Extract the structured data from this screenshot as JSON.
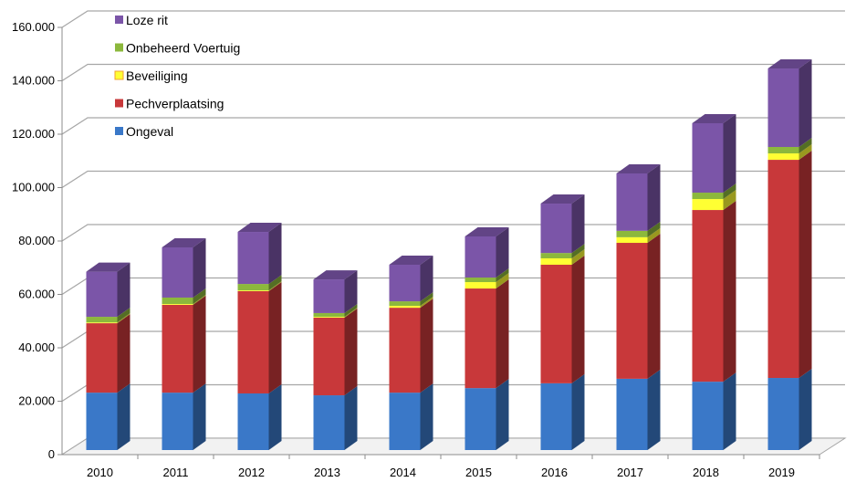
{
  "chart_data": {
    "type": "bar",
    "stacked": true,
    "three_d": true,
    "title": "",
    "xlabel": "",
    "ylabel": "",
    "ylim": [
      0,
      160000
    ],
    "yticks": [
      0,
      20000,
      40000,
      60000,
      80000,
      100000,
      120000,
      140000,
      160000
    ],
    "ytick_labels": [
      "0",
      "20.000",
      "40.000",
      "60.000",
      "80.000",
      "100.000",
      "120.000",
      "140.000",
      "160.000"
    ],
    "grid": true,
    "legend_position": "top-left",
    "categories": [
      "2010",
      "2011",
      "2012",
      "2013",
      "2014",
      "2015",
      "2016",
      "2017",
      "2018",
      "2019"
    ],
    "series": [
      {
        "name": "Ongeval",
        "color": "#3a78c8",
        "values": [
          21500,
          21500,
          21200,
          20500,
          21500,
          23200,
          25000,
          26700,
          25600,
          27000
        ]
      },
      {
        "name": "Pechverplaatsing",
        "color": "#c8383a",
        "values": [
          26000,
          32900,
          38300,
          29100,
          31800,
          37300,
          44400,
          50900,
          64300,
          81700
        ]
      },
      {
        "name": "Beveiliging",
        "color": "#ffff33",
        "values": [
          300,
          300,
          300,
          300,
          700,
          2400,
          2400,
          2100,
          4100,
          2400
        ]
      },
      {
        "name": "Onbeheerd Voertuig",
        "color": "#8cb83c",
        "values": [
          2100,
          2400,
          2400,
          1400,
          1700,
          1700,
          2000,
          2400,
          2400,
          2400
        ]
      },
      {
        "name": "Loze rit",
        "color": "#7b55a8",
        "values": [
          16900,
          18800,
          19500,
          12600,
          13700,
          15400,
          18500,
          21500,
          26000,
          29400
        ]
      }
    ],
    "legend_order": [
      "Loze rit",
      "Onbeheerd Voertuig",
      "Beveiliging",
      "Pechverplaatsing",
      "Ongeval"
    ]
  }
}
